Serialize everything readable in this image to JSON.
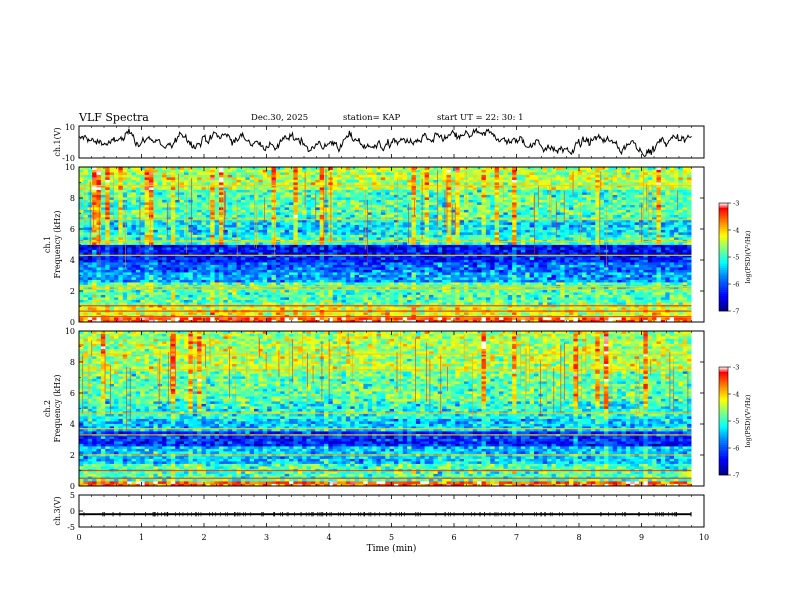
{
  "header": {
    "title": "VLF Spectra",
    "date": "Dec.30, 2025",
    "station": "station= KAP",
    "start_ut": "start  UT  =   22: 30: 1"
  },
  "chart_data": [
    {
      "type": "line",
      "name": "ch1-waveform",
      "ylabel": "ch.1(V)",
      "ylim": [
        -10,
        10
      ],
      "y_ticks": [
        "10",
        "-10"
      ],
      "x_range_min": [
        0,
        9.8
      ],
      "y_range_observed": [
        -9,
        9
      ],
      "description_values": "noisy random-walk voltage trace between about -9 and 9 V"
    },
    {
      "type": "heatmap",
      "name": "ch1-spectrogram",
      "ylabel": "ch.1\nFrequency (kHz)",
      "ylabel_line1": "ch.1",
      "ylabel_line2": "Frequency (kHz)",
      "ylim": [
        0,
        10
      ],
      "y_ticks": [
        "0",
        "2",
        "4",
        "6",
        "8",
        "10"
      ],
      "x_range_min": [
        0,
        9.8
      ],
      "bands_khz": [
        {
          "from": 0.0,
          "to": 0.3,
          "level": -3.4
        },
        {
          "from": 0.3,
          "to": 1.2,
          "level": -4.3
        },
        {
          "from": 1.2,
          "to": 2.6,
          "level": -4.9
        },
        {
          "from": 2.6,
          "to": 3.3,
          "level": -5.6
        },
        {
          "from": 3.3,
          "to": 3.9,
          "level": -5.9
        },
        {
          "from": 3.9,
          "to": 4.3,
          "level": -6.3
        },
        {
          "from": 4.3,
          "to": 5.0,
          "level": -6.4
        },
        {
          "from": 5.0,
          "to": 5.6,
          "level": -5.0
        },
        {
          "from": 5.6,
          "to": 6.6,
          "level": -5.3
        },
        {
          "from": 6.6,
          "to": 8.6,
          "level": -4.9
        },
        {
          "from": 8.6,
          "to": 10.0,
          "level": -4.5
        }
      ],
      "lines_khz": [
        0.35,
        0.7,
        1.05,
        2.1,
        2.3,
        4.3,
        5.2,
        6.6,
        8.8
      ],
      "colorbar": {
        "label": "log(PSD)(V²/Hz)",
        "range": [
          -7,
          -3
        ],
        "ticks": [
          "-3",
          "-4",
          "-5",
          "-6",
          "-7"
        ]
      }
    },
    {
      "type": "heatmap",
      "name": "ch2-spectrogram",
      "ylabel": "ch.2\nFrequency (kHz)",
      "ylabel_line1": "ch.2",
      "ylabel_line2": "Frequency (kHz)",
      "ylim": [
        0,
        10
      ],
      "y_ticks": [
        "0",
        "2",
        "4",
        "6",
        "8",
        "10"
      ],
      "x_range_min": [
        0,
        9.8
      ],
      "bands_khz": [
        {
          "from": 0.0,
          "to": 0.4,
          "level": -3.5
        },
        {
          "from": 0.4,
          "to": 1.5,
          "level": -4.9
        },
        {
          "from": 1.5,
          "to": 2.6,
          "level": -5.4
        },
        {
          "from": 2.6,
          "to": 3.5,
          "level": -6.2
        },
        {
          "from": 3.5,
          "to": 4.4,
          "level": -5.4
        },
        {
          "from": 4.4,
          "to": 5.5,
          "level": -5.1
        },
        {
          "from": 5.5,
          "to": 7.5,
          "level": -4.8
        },
        {
          "from": 7.5,
          "to": 10.0,
          "level": -4.5
        }
      ],
      "lines_khz": [
        0.5,
        1.0,
        2.0,
        3.3,
        3.7,
        4.7,
        7.5,
        8.5
      ],
      "colorbar": {
        "label": "log(PSD)(V²/Hz)",
        "range": [
          -7,
          -3
        ],
        "ticks": [
          "-3",
          "-4",
          "-5",
          "-6",
          "-7"
        ]
      }
    },
    {
      "type": "line",
      "name": "ch3-waveform",
      "ylabel": "ch.3(V)",
      "ylim": [
        -5,
        5
      ],
      "y_ticks": [
        "5",
        "0",
        "-5"
      ],
      "x_range_min": [
        0,
        9.8
      ],
      "y_range_observed": [
        -1.3,
        -0.7
      ]
    }
  ],
  "xaxis": {
    "label": "Time  (min)",
    "range": [
      0,
      10
    ],
    "ticks": [
      "0",
      "1",
      "2",
      "3",
      "4",
      "5",
      "6",
      "7",
      "8",
      "9",
      "10"
    ]
  },
  "colors": {
    "axes": "#000000",
    "cmap": [
      "#00007f",
      "#0000ff",
      "#007fff",
      "#00ffff",
      "#7fff7f",
      "#ffff00",
      "#ff7f00",
      "#ff0000",
      "#ffffff"
    ]
  }
}
